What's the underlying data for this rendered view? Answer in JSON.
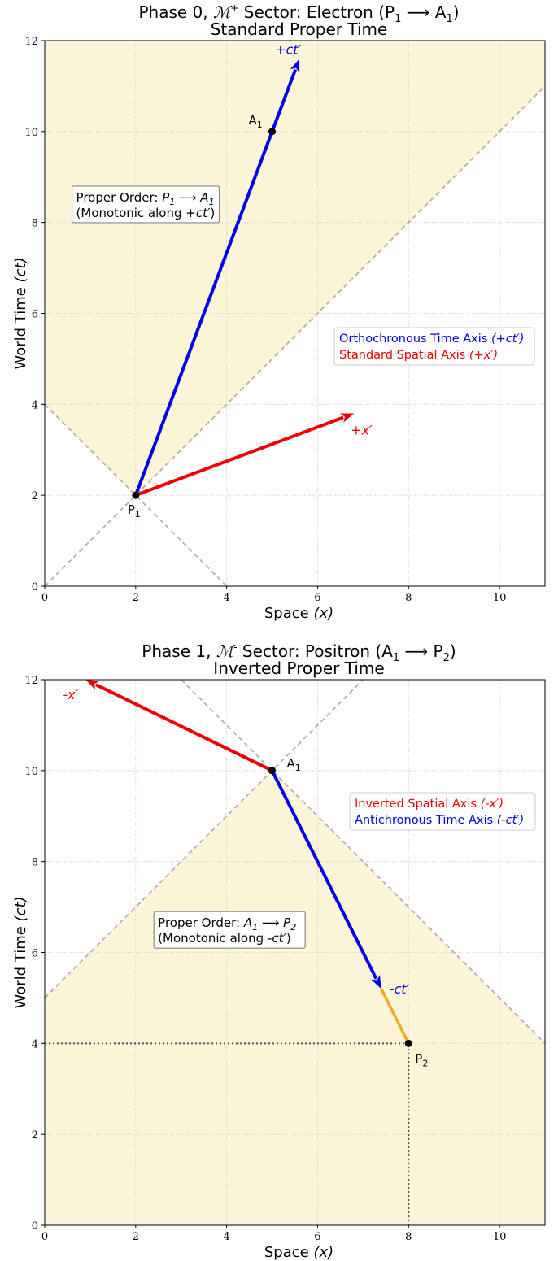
{
  "colors": {
    "time_axis": "#0000ee",
    "space_axis": "#ee0000",
    "segment": "#f5a623",
    "shade": "#fdf5d8",
    "cone": "#aaaaaa",
    "grid": "#c8c8c8",
    "point": "#000000"
  },
  "chart_data": [
    {
      "type": "line",
      "title_parts": [
        "Phase 0, ",
        "ℳ",
        "+",
        " Sector: Electron (P",
        "1",
        " ⟶ A",
        "1",
        ")"
      ],
      "subtitle": "Standard Proper Time",
      "xlabel": "Space",
      "xlabel_var": "(x)",
      "ylabel": "World Time",
      "ylabel_var": "(ct)",
      "xlim": [
        0,
        11
      ],
      "ylim": [
        0,
        12
      ],
      "xticks": [
        0,
        2,
        4,
        6,
        8,
        10
      ],
      "yticks": [
        0,
        2,
        4,
        6,
        8,
        10,
        12
      ],
      "grid": true,
      "shaded_region": "future light cone of P1",
      "light_cone_lines": [
        {
          "x": [
            0,
            11
          ],
          "y": [
            0,
            11
          ]
        },
        {
          "x": [
            0,
            4
          ],
          "y": [
            4,
            0
          ]
        }
      ],
      "points": [
        {
          "name": "P",
          "sub": "1",
          "x": 2,
          "y": 2,
          "label_pos": "below"
        },
        {
          "name": "A",
          "sub": "1",
          "x": 5,
          "y": 10,
          "label_pos": "upper-left"
        }
      ],
      "arrows": [
        {
          "from": [
            2,
            2
          ],
          "to": [
            5.6,
            11.6
          ],
          "color": "time",
          "label": "+ct′",
          "label_pos": "above-left"
        },
        {
          "from": [
            2,
            2
          ],
          "to": [
            6.8,
            3.8
          ],
          "color": "space",
          "label": "+x′",
          "label_pos": "below-right"
        }
      ],
      "segments": [],
      "guide_lines": [],
      "annotation_box": {
        "line1_prefix": "Proper Order: ",
        "line1_from": "P",
        "line1_from_sub": "1",
        "line1_arrow": " ⟶ ",
        "line1_to": "A",
        "line1_to_sub": "1",
        "line2_prefix": "(Monotonic along ",
        "line2_axis": "+ct′",
        "line2_suffix": ")",
        "x": 0.6,
        "y": 8.8
      },
      "legend": {
        "placement": "center-right",
        "entries": [
          {
            "text": "Orthochronous Time Axis ",
            "var": "(+ct′)",
            "color": "time"
          },
          {
            "text": "Standard Spatial Axis ",
            "var": "(+x′)",
            "color": "space"
          }
        ]
      }
    },
    {
      "type": "line",
      "title_parts": [
        "Phase 1, ",
        "ℳ",
        "-",
        " Sector: Positron (A",
        "1",
        " ⟶ P",
        "2",
        ")"
      ],
      "subtitle": "Inverted Proper Time",
      "xlabel": "Space",
      "xlabel_var": "(x)",
      "ylabel": "World Time",
      "ylabel_var": "(ct)",
      "xlim": [
        0,
        11
      ],
      "ylim": [
        0,
        12
      ],
      "xticks": [
        0,
        2,
        4,
        6,
        8,
        10
      ],
      "yticks": [
        0,
        2,
        4,
        6,
        8,
        10,
        12
      ],
      "grid": true,
      "shaded_region": "past light cone of A1",
      "light_cone_lines": [
        {
          "x": [
            0,
            7
          ],
          "y": [
            5,
            12
          ]
        },
        {
          "x": [
            3,
            11
          ],
          "y": [
            12,
            4
          ]
        }
      ],
      "points": [
        {
          "name": "A",
          "sub": "1",
          "x": 5,
          "y": 10,
          "label_pos": "right"
        },
        {
          "name": "P",
          "sub": "2",
          "x": 8,
          "y": 4,
          "label_pos": "below-right"
        }
      ],
      "arrows": [
        {
          "from": [
            5,
            10
          ],
          "to": [
            0.9,
            12.0
          ],
          "color": "space",
          "label": "-x′",
          "label_pos": "below-left"
        },
        {
          "from": [
            5,
            10
          ],
          "to": [
            7.4,
            5.2
          ],
          "color": "time",
          "label": "-ct′",
          "label_pos": "right"
        }
      ],
      "segments": [
        {
          "from": [
            7.4,
            5.2
          ],
          "to": [
            8,
            4
          ],
          "color": "segment"
        }
      ],
      "guide_lines": [
        {
          "x": [
            0,
            8
          ],
          "y": [
            4,
            4
          ]
        },
        {
          "x": [
            8,
            8
          ],
          "y": [
            0,
            4
          ]
        }
      ],
      "annotation_box": {
        "line1_prefix": "Proper Order: ",
        "line1_from": "A",
        "line1_from_sub": "1",
        "line1_arrow": " ⟶ ",
        "line1_to": "P",
        "line1_to_sub": "2",
        "line2_prefix": "(Monotonic along ",
        "line2_axis": "-ct′",
        "line2_suffix": ")",
        "x": 2.4,
        "y": 6.9
      },
      "legend": {
        "placement": "upper-right",
        "entries": [
          {
            "text": "Inverted Spatial Axis ",
            "var": "(-x′)",
            "color": "space"
          },
          {
            "text": "Antichronous Time Axis ",
            "var": "(-ct′)",
            "color": "time"
          }
        ]
      }
    }
  ]
}
